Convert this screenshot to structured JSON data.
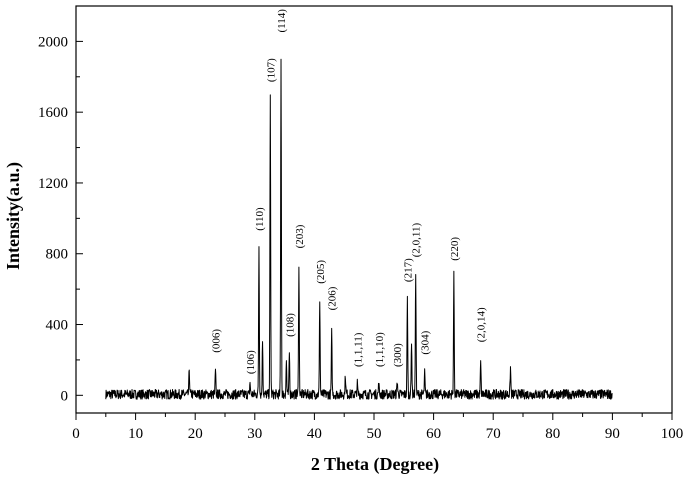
{
  "chart_data": {
    "type": "line",
    "xlabel": "2 Theta (Degree)",
    "ylabel": "Intensity(a.u.)",
    "xlim": [
      0,
      100
    ],
    "ylim": [
      -100,
      2200
    ],
    "x_ticks": [
      0,
      10,
      20,
      30,
      40,
      50,
      60,
      70,
      80,
      90,
      100
    ],
    "y_ticks": [
      0,
      400,
      800,
      1200,
      1600,
      2000
    ],
    "grid": false,
    "legend": "none",
    "line_color": "#000000",
    "noise_range": [
      5,
      90
    ],
    "noise_amplitude": 55,
    "peaks": [
      {
        "label": "(006)",
        "x": 23.4,
        "y": 130,
        "label_y": 240
      },
      {
        "label": "(106)",
        "x": 29.2,
        "y": 70,
        "label_y": 120
      },
      {
        "label": "(110)",
        "x": 30.7,
        "y": 840,
        "label_y": 930
      },
      {
        "label": "(107)",
        "x": 32.6,
        "y": 1680,
        "label_y": 1770
      },
      {
        "label": "(114)",
        "x": 34.4,
        "y": 1910,
        "label_y": 2050
      },
      {
        "label": "(108)",
        "x": 35.8,
        "y": 240,
        "label_y": 330
      },
      {
        "label": "(203)",
        "x": 37.4,
        "y": 740,
        "label_y": 830
      },
      {
        "label": "(205)",
        "x": 40.9,
        "y": 540,
        "label_y": 630
      },
      {
        "label": "(206)",
        "x": 42.9,
        "y": 350,
        "label_y": 480
      },
      {
        "label": "(1,1,11)",
        "x": 47.2,
        "y": 60,
        "label_y": 160
      },
      {
        "label": "(1,1,10)",
        "x": 50.8,
        "y": 60,
        "label_y": 160
      },
      {
        "label": "(300)",
        "x": 53.9,
        "y": 80,
        "label_y": 160
      },
      {
        "label": "(217)",
        "x": 55.6,
        "y": 540,
        "label_y": 640
      },
      {
        "label": "(2,0,11)",
        "x": 57.0,
        "y": 690,
        "label_y": 780
      },
      {
        "label": "(304)",
        "x": 58.5,
        "y": 120,
        "label_y": 230
      },
      {
        "label": "(220)",
        "x": 63.4,
        "y": 670,
        "label_y": 760
      },
      {
        "label": "(2,0,14)",
        "x": 67.9,
        "y": 180,
        "label_y": 300
      }
    ],
    "minor_peaks": [
      {
        "x": 19.0,
        "y": 145
      },
      {
        "x": 31.3,
        "y": 310
      },
      {
        "x": 35.3,
        "y": 190
      },
      {
        "x": 45.2,
        "y": 110
      },
      {
        "x": 56.3,
        "y": 310
      },
      {
        "x": 72.9,
        "y": 150
      }
    ]
  }
}
